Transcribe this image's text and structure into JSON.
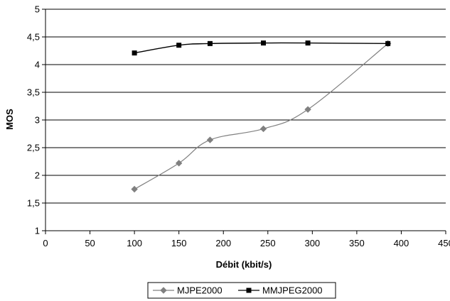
{
  "chart_data": {
    "type": "line",
    "title": "",
    "xlabel": "Débit (kbit/s)",
    "ylabel": "MOS",
    "xlim": [
      0,
      450
    ],
    "ylim": [
      1,
      5
    ],
    "x_ticks": [
      0,
      50,
      100,
      150,
      200,
      250,
      300,
      350,
      400,
      450
    ],
    "x_tick_labels": [
      "0",
      "50",
      "100",
      "150",
      "200",
      "250",
      "300",
      "350",
      "400",
      "450"
    ],
    "y_ticks": [
      1,
      1.5,
      2,
      2.5,
      3,
      3.5,
      4,
      4.5,
      5
    ],
    "y_tick_labels": [
      "1",
      "1,5",
      "2",
      "2,5",
      "3",
      "3,5",
      "4",
      "4,5",
      "5"
    ],
    "grid": "horizontal",
    "legend_position": "bottom",
    "series": [
      {
        "name": "MJPE2000",
        "marker": "diamond",
        "color": "#808080",
        "points": [
          {
            "x": 100,
            "y": 1.75
          },
          {
            "x": 150,
            "y": 2.22
          },
          {
            "x": 185,
            "y": 2.64
          },
          {
            "x": 245,
            "y": 2.84
          },
          {
            "x": 295,
            "y": 3.19
          },
          {
            "x": 385,
            "y": 4.38
          }
        ]
      },
      {
        "name": "MMJPEG2000",
        "marker": "square",
        "color": "#000000",
        "points": [
          {
            "x": 100,
            "y": 4.21
          },
          {
            "x": 150,
            "y": 4.35
          },
          {
            "x": 185,
            "y": 4.38
          },
          {
            "x": 245,
            "y": 4.39
          },
          {
            "x": 295,
            "y": 4.39
          },
          {
            "x": 385,
            "y": 4.38
          }
        ]
      }
    ]
  }
}
